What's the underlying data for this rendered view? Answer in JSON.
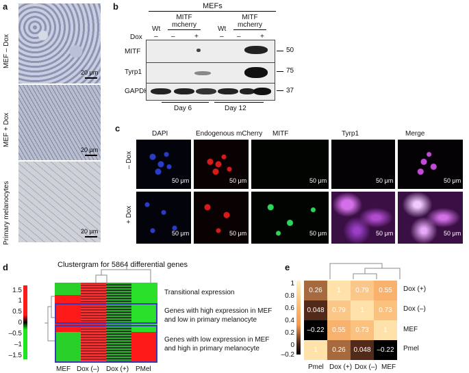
{
  "panel_a": {
    "label": "a",
    "rows": [
      {
        "label": "MEF – Dox",
        "scale": "20 μm"
      },
      {
        "label": "MEF + Dox",
        "scale": "20 μm"
      },
      {
        "label": "Primary melanocytes",
        "scale": "20 μm"
      }
    ]
  },
  "panel_b": {
    "label": "b",
    "group": "MEFs",
    "lanes_wt1": "Wt",
    "lanes_mitf1": "MITF mcherry",
    "lanes_wt2": "Wt",
    "lanes_mitf2": "MITF mcherry",
    "dox_label": "Dox",
    "dox_values": [
      "–",
      "–",
      "+",
      "–",
      "–",
      "+"
    ],
    "blots": [
      {
        "name": "MITF",
        "mw": "50"
      },
      {
        "name": "Tyrp1",
        "mw": "75"
      },
      {
        "name": "GAPDH",
        "mw": "37"
      }
    ],
    "days": [
      "Day 6",
      "Day 12"
    ]
  },
  "panel_c": {
    "label": "c",
    "channels": [
      "DAPI",
      "Endogenous mCherry",
      "MITF",
      "Tyrp1",
      "Merge"
    ],
    "channel_colors": [
      "#3b5bdb",
      "#e02020",
      "#1aa84a",
      "#9b3fc9",
      "#111111"
    ],
    "rows": [
      "– Dox",
      "+ Dox"
    ],
    "scale": "50 μm"
  },
  "panel_d": {
    "label": "d",
    "title": "Clustergram for 5864 differential genes",
    "colorbar_ticks": [
      "1.5",
      "1",
      "0.5",
      "0",
      "–0.5",
      "–1",
      "–1.5"
    ],
    "columns": [
      "MEF",
      "Dox (–)",
      "Dox (+)",
      "PMel"
    ],
    "annotations": [
      "Transitional expression",
      "Genes with high expression in MEF and low in primary melanocyte",
      "Genes with low expression in MEF and high in primary melanocyte"
    ]
  },
  "panel_e": {
    "label": "e",
    "colorbar_ticks": [
      "1",
      "0.8",
      "0.6",
      "0.4",
      "0.2",
      "0",
      "–0.2"
    ],
    "chart_data": {
      "type": "heatmap",
      "rows": [
        "Dox (+)",
        "Dox (–)",
        "MEF",
        "Pmel"
      ],
      "columns": [
        "Pmel",
        "Dox (+)",
        "Dox (–)",
        "MEF"
      ],
      "values": [
        [
          0.26,
          1,
          0.79,
          0.55
        ],
        [
          0.048,
          0.79,
          1,
          0.73
        ],
        [
          -0.22,
          0.55,
          0.73,
          1
        ],
        [
          1,
          0.26,
          0.048,
          -0.22
        ]
      ],
      "value_labels": [
        [
          "0.26",
          "1",
          "0.79",
          "0.55"
        ],
        [
          "0.048",
          "0.79",
          "1",
          "0.73"
        ],
        [
          "–0.22",
          "0.55",
          "0.73",
          "1"
        ],
        [
          "1",
          "0.26",
          "0.048",
          "–0.22"
        ]
      ],
      "colormap": [
        "#000000",
        "#f79a4f",
        "#fff3c4"
      ]
    }
  }
}
